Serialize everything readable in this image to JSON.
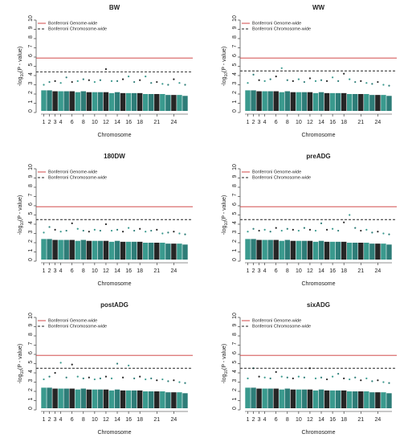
{
  "chart_data": [
    {
      "type": "manhattan",
      "title": "BW",
      "xlabel": "Chromosome",
      "ylabel": "-log",
      "ylabel_sub": "10",
      "ylabel_rest": "(P - value)",
      "ylim": [
        0,
        10
      ],
      "yticks": [
        0,
        1,
        2,
        3,
        4,
        5,
        6,
        7,
        8,
        9,
        10
      ],
      "categories": [
        "1",
        "2",
        "3",
        "4",
        null,
        "6",
        null,
        "8",
        null,
        "10",
        null,
        "12",
        null,
        "14",
        null,
        "16",
        null,
        "18",
        null,
        null,
        "21",
        null,
        null,
        "24",
        null,
        null
      ],
      "colors": [
        "#3a9a8e",
        "#2e7d78",
        "#262626"
      ],
      "cloud": [
        2.4,
        2.4,
        2.3,
        2.3,
        2.3,
        2.3,
        2.2,
        2.3,
        2.2,
        2.2,
        2.2,
        2.2,
        2.1,
        2.2,
        2.1,
        2.1,
        2.1,
        2.1,
        2.0,
        2.0,
        2.0,
        2.0,
        1.9,
        1.9,
        1.9,
        1.8
      ],
      "peaks": [
        3.0,
        3.3,
        3.4,
        3.2,
        3.8,
        3.3,
        3.4,
        3.6,
        3.5,
        3.3,
        3.5,
        4.7,
        3.4,
        3.4,
        3.6,
        3.9,
        3.3,
        3.5,
        3.9,
        3.2,
        3.3,
        3.1,
        3.0,
        3.6,
        3.2,
        3.0
      ],
      "thresholds": [
        {
          "name": "Bonferroni Genome-wide",
          "value": 5.9,
          "color": "#cc3333",
          "style": "solid"
        },
        {
          "name": "Bonferroni Chromosome-wide",
          "value": 4.4,
          "color": "#222222",
          "style": "dashed"
        }
      ]
    },
    {
      "type": "manhattan",
      "title": "WW",
      "xlabel": "Chromosome",
      "ylabel": "-log",
      "ylabel_sub": "10",
      "ylabel_rest": "(P - value)",
      "ylim": [
        0,
        10
      ],
      "yticks": [
        0,
        1,
        2,
        3,
        4,
        5,
        6,
        7,
        8,
        9,
        10
      ],
      "categories": [
        "1",
        "2",
        "3",
        "4",
        null,
        "6",
        null,
        "8",
        null,
        "10",
        null,
        "12",
        null,
        "14",
        null,
        "16",
        null,
        "18",
        null,
        null,
        "21",
        null,
        null,
        "24",
        null,
        null
      ],
      "colors": [
        "#3a9a8e",
        "#2e7d78",
        "#262626"
      ],
      "cloud": [
        2.4,
        2.4,
        2.3,
        2.3,
        2.3,
        2.3,
        2.2,
        2.3,
        2.2,
        2.2,
        2.2,
        2.2,
        2.1,
        2.2,
        2.1,
        2.1,
        2.1,
        2.1,
        2.0,
        2.0,
        2.0,
        2.0,
        1.9,
        1.9,
        1.9,
        1.8
      ],
      "peaks": [
        3.2,
        4.1,
        3.5,
        3.4,
        3.6,
        3.9,
        4.8,
        3.5,
        3.4,
        3.6,
        3.3,
        3.7,
        3.4,
        3.5,
        3.4,
        3.8,
        3.4,
        4.2,
        3.6,
        3.3,
        3.4,
        3.2,
        3.1,
        3.3,
        3.0,
        2.9
      ],
      "thresholds": [
        {
          "name": "Bonferroni Genome-wide",
          "value": 5.9,
          "color": "#cc3333",
          "style": "solid"
        },
        {
          "name": "Bonferroni Chromosome-wide",
          "value": 4.5,
          "color": "#222222",
          "style": "dashed"
        }
      ]
    },
    {
      "type": "manhattan",
      "title": "180DW",
      "xlabel": "Chromosome",
      "ylabel": "-log",
      "ylabel_sub": "10",
      "ylabel_rest": "(P - value)",
      "ylim": [
        0,
        10
      ],
      "yticks": [
        0,
        1,
        2,
        3,
        4,
        5,
        6,
        7,
        8,
        9,
        10
      ],
      "categories": [
        "1",
        "2",
        "3",
        "4",
        null,
        "6",
        null,
        "8",
        null,
        "10",
        null,
        "12",
        null,
        "14",
        null,
        "16",
        null,
        "18",
        null,
        null,
        "21",
        null,
        null,
        "24",
        null,
        null
      ],
      "colors": [
        "#3a9a8e",
        "#2e7d78",
        "#262626"
      ],
      "cloud": [
        2.4,
        2.4,
        2.3,
        2.3,
        2.3,
        2.3,
        2.2,
        2.3,
        2.2,
        2.2,
        2.2,
        2.2,
        2.1,
        2.2,
        2.1,
        2.1,
        2.1,
        2.1,
        2.0,
        2.0,
        2.0,
        2.0,
        1.9,
        1.9,
        1.9,
        1.8
      ],
      "peaks": [
        3.1,
        3.7,
        3.4,
        3.2,
        3.3,
        4.1,
        3.5,
        3.3,
        3.2,
        3.4,
        3.3,
        4.0,
        3.3,
        3.4,
        3.2,
        3.6,
        3.3,
        3.5,
        3.2,
        3.3,
        3.4,
        3.0,
        3.1,
        3.2,
        3.0,
        2.9
      ],
      "thresholds": [
        {
          "name": "Bonferroni Genome-wide",
          "value": 5.9,
          "color": "#cc3333",
          "style": "solid"
        },
        {
          "name": "Bonferroni Chromosome-wide",
          "value": 4.5,
          "color": "#222222",
          "style": "dashed"
        }
      ]
    },
    {
      "type": "manhattan",
      "title": "preADG",
      "xlabel": "Chromosome",
      "ylabel": "-log",
      "ylabel_sub": "10",
      "ylabel_rest": "(P - value)",
      "ylim": [
        0,
        10
      ],
      "yticks": [
        0,
        1,
        2,
        3,
        4,
        5,
        6,
        7,
        8,
        9,
        10
      ],
      "categories": [
        "1",
        "2",
        "3",
        "4",
        null,
        "6",
        null,
        "8",
        null,
        "10",
        null,
        "12",
        null,
        "14",
        null,
        "16",
        null,
        "18",
        null,
        null,
        "21",
        null,
        null,
        "24",
        null,
        null
      ],
      "colors": [
        "#3a9a8e",
        "#2e7d78",
        "#262626"
      ],
      "cloud": [
        2.4,
        2.4,
        2.3,
        2.3,
        2.3,
        2.3,
        2.2,
        2.3,
        2.2,
        2.2,
        2.2,
        2.2,
        2.1,
        2.2,
        2.1,
        2.1,
        2.1,
        2.1,
        2.0,
        2.0,
        2.0,
        2.0,
        1.9,
        1.9,
        1.9,
        1.8
      ],
      "peaks": [
        3.2,
        3.5,
        3.3,
        3.4,
        3.2,
        3.6,
        3.3,
        3.5,
        3.4,
        3.3,
        3.6,
        3.4,
        3.3,
        4.1,
        3.4,
        3.5,
        3.3,
        4.2,
        5.0,
        3.6,
        3.3,
        3.4,
        3.1,
        3.2,
        3.0,
        2.9
      ],
      "thresholds": [
        {
          "name": "Bonferroni Genome-wide",
          "value": 5.9,
          "color": "#cc3333",
          "style": "solid"
        },
        {
          "name": "Bonferroni Chromosome-wide",
          "value": 4.5,
          "color": "#222222",
          "style": "dashed"
        }
      ]
    },
    {
      "type": "manhattan",
      "title": "postADG",
      "xlabel": "Chromosome",
      "ylabel": "-log",
      "ylabel_sub": "10",
      "ylabel_rest": "(P - value)",
      "ylim": [
        0,
        10
      ],
      "yticks": [
        0,
        1,
        2,
        3,
        4,
        5,
        6,
        7,
        8,
        9,
        10
      ],
      "categories": [
        "1",
        "2",
        "3",
        "4",
        null,
        "6",
        null,
        "8",
        null,
        "10",
        null,
        "12",
        null,
        "14",
        null,
        "16",
        null,
        "18",
        null,
        null,
        "21",
        null,
        null,
        "24",
        null,
        null
      ],
      "colors": [
        "#3a9a8e",
        "#2e7d78",
        "#262626"
      ],
      "cloud": [
        2.4,
        2.4,
        2.3,
        2.3,
        2.3,
        2.3,
        2.2,
        2.3,
        2.2,
        2.2,
        2.2,
        2.2,
        2.1,
        2.2,
        2.1,
        2.1,
        2.1,
        2.1,
        2.0,
        2.0,
        2.0,
        2.0,
        1.9,
        1.9,
        1.9,
        1.8
      ],
      "peaks": [
        3.3,
        3.6,
        4.0,
        5.1,
        3.5,
        4.9,
        3.6,
        3.4,
        3.5,
        3.3,
        3.4,
        3.6,
        3.4,
        5.0,
        3.5,
        4.8,
        3.4,
        3.6,
        3.3,
        3.4,
        3.2,
        3.3,
        3.1,
        3.2,
        3.0,
        2.9
      ],
      "thresholds": [
        {
          "name": "Bonferroni Genome-wide",
          "value": 5.9,
          "color": "#cc3333",
          "style": "solid"
        },
        {
          "name": "Bonferroni Chromosome-wide",
          "value": 4.5,
          "color": "#222222",
          "style": "dashed"
        }
      ]
    },
    {
      "type": "manhattan",
      "title": "sixADG",
      "xlabel": "Chromosome",
      "ylabel": "-log",
      "ylabel_sub": "10",
      "ylabel_rest": "(P - value)",
      "ylim": [
        0,
        10
      ],
      "yticks": [
        0,
        1,
        2,
        3,
        4,
        5,
        6,
        7,
        8,
        9,
        10
      ],
      "categories": [
        "1",
        "2",
        "3",
        "4",
        null,
        "6",
        null,
        "8",
        null,
        "10",
        null,
        "12",
        null,
        "14",
        null,
        "16",
        null,
        "18",
        null,
        null,
        "21",
        null,
        null,
        "24",
        null,
        null
      ],
      "colors": [
        "#3a9a8e",
        "#2e7d78",
        "#262626"
      ],
      "cloud": [
        2.4,
        2.4,
        2.3,
        2.3,
        2.3,
        2.3,
        2.2,
        2.3,
        2.2,
        2.2,
        2.2,
        2.2,
        2.1,
        2.2,
        2.1,
        2.1,
        2.1,
        2.1,
        2.0,
        2.0,
        2.0,
        2.0,
        1.9,
        1.9,
        1.9,
        1.8
      ],
      "peaks": [
        3.4,
        4.5,
        3.6,
        3.5,
        3.4,
        4.1,
        3.6,
        3.5,
        3.4,
        3.6,
        3.5,
        4.5,
        3.4,
        3.5,
        3.3,
        3.6,
        3.9,
        3.4,
        3.3,
        3.5,
        3.2,
        3.4,
        3.1,
        3.2,
        3.0,
        2.9
      ],
      "thresholds": [
        {
          "name": "Bonferroni Genome-wide",
          "value": 5.9,
          "color": "#cc3333",
          "style": "solid"
        },
        {
          "name": "Bonferroni Chromosome-wide",
          "value": 4.5,
          "color": "#222222",
          "style": "dashed"
        }
      ]
    }
  ]
}
